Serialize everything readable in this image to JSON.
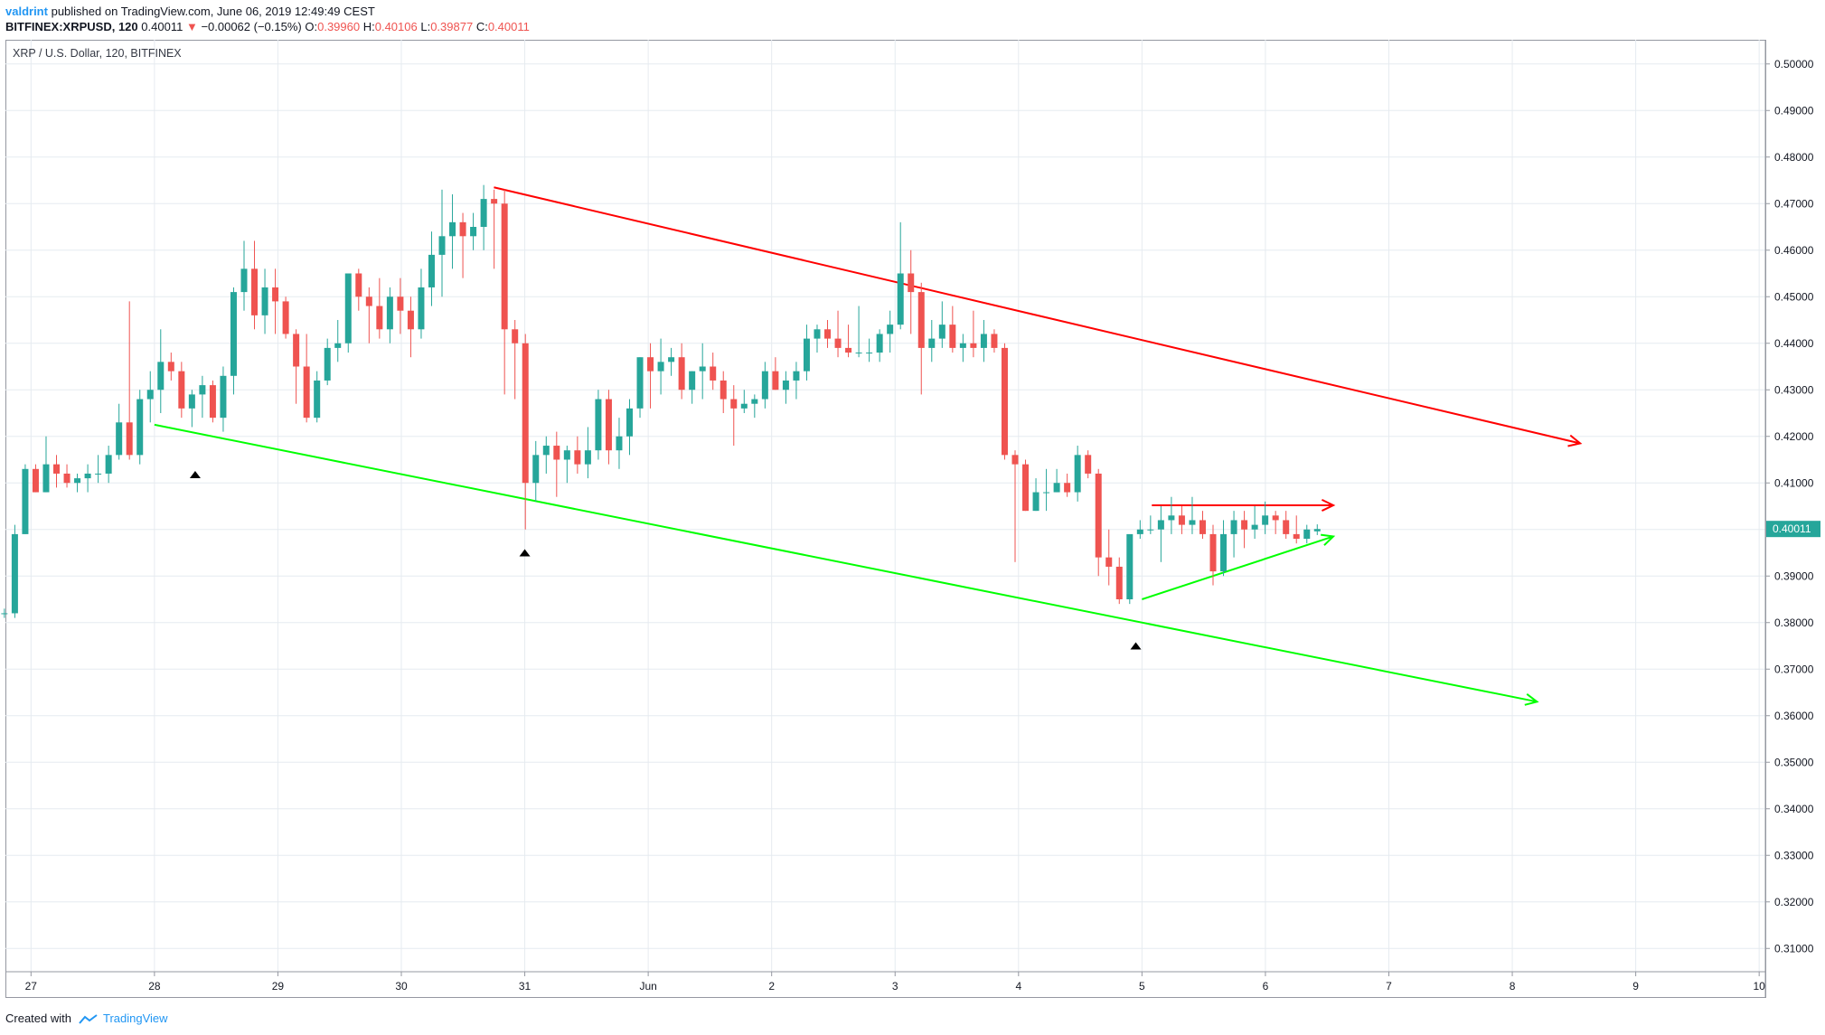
{
  "header": {
    "author": "valdrint",
    "published": "published on TradingView.com, June 06, 2019 12:49:49 CEST",
    "symbol": "BITFINEX:XRPUSD, 120",
    "last": "0.40011",
    "change_arrow": "▼",
    "change": "−0.00062 (−0.15%)",
    "o_label": "O:",
    "o_value": "0.39960",
    "h_label": "H:",
    "h_value": "0.40106",
    "l_label": "L:",
    "l_value": "0.39877",
    "c_label": "C:",
    "c_value": "0.40011"
  },
  "legend": "XRP / U.S. Dollar, 120, BITFINEX",
  "footer": {
    "created_with": "Created with",
    "brand": "TradingView"
  },
  "colors": {
    "up": "#26a69a",
    "down": "#ef5350",
    "resistance": "#ff0000",
    "support": "#00ff00",
    "grid": "#e6ebf0",
    "current_price_box": "#26a69a"
  },
  "chart_data": {
    "type": "candlestick",
    "title": "XRP / U.S. Dollar, 120, BITFINEX",
    "timeframe": "120",
    "ylim": [
      0.305,
      0.505
    ],
    "xlim": [
      -0.2,
      14.05
    ],
    "x_ticks": [
      {
        "x": 0,
        "label": "27"
      },
      {
        "x": 1,
        "label": "28"
      },
      {
        "x": 2,
        "label": "29"
      },
      {
        "x": 3,
        "label": "30"
      },
      {
        "x": 4,
        "label": "31"
      },
      {
        "x": 5,
        "label": "Jun"
      },
      {
        "x": 6,
        "label": "2"
      },
      {
        "x": 7,
        "label": "3"
      },
      {
        "x": 8,
        "label": "4"
      },
      {
        "x": 9,
        "label": "5"
      },
      {
        "x": 10,
        "label": "6"
      },
      {
        "x": 11,
        "label": "7"
      },
      {
        "x": 12,
        "label": "8"
      },
      {
        "x": 13,
        "label": "9"
      },
      {
        "x": 14,
        "label": "10"
      }
    ],
    "y_ticks": [
      "0.50000",
      "0.49000",
      "0.48000",
      "0.47000",
      "0.46000",
      "0.45000",
      "0.44000",
      "0.43000",
      "0.42000",
      "0.41000",
      "0.40000",
      "0.39000",
      "0.38000",
      "0.37000",
      "0.36000",
      "0.35000",
      "0.34000",
      "0.33000",
      "0.32000",
      "0.31000"
    ],
    "current_price": "0.40011",
    "candles_ohlc": [
      [
        0.382,
        0.383,
        0.381,
        0.382
      ],
      [
        0.382,
        0.383,
        0.381,
        0.382
      ],
      [
        0.382,
        0.401,
        0.381,
        0.399
      ],
      [
        0.399,
        0.414,
        0.399,
        0.413
      ],
      [
        0.413,
        0.414,
        0.408,
        0.408
      ],
      [
        0.408,
        0.42,
        0.408,
        0.414
      ],
      [
        0.414,
        0.416,
        0.409,
        0.412
      ],
      [
        0.412,
        0.414,
        0.409,
        0.41
      ],
      [
        0.41,
        0.412,
        0.408,
        0.411
      ],
      [
        0.411,
        0.414,
        0.408,
        0.412
      ],
      [
        0.412,
        0.416,
        0.41,
        0.412
      ],
      [
        0.412,
        0.418,
        0.41,
        0.416
      ],
      [
        0.416,
        0.427,
        0.415,
        0.423
      ],
      [
        0.423,
        0.449,
        0.415,
        0.416
      ],
      [
        0.416,
        0.43,
        0.414,
        0.428
      ],
      [
        0.428,
        0.434,
        0.423,
        0.43
      ],
      [
        0.43,
        0.443,
        0.425,
        0.436
      ],
      [
        0.436,
        0.438,
        0.432,
        0.434
      ],
      [
        0.434,
        0.436,
        0.424,
        0.426
      ],
      [
        0.426,
        0.43,
        0.422,
        0.429
      ],
      [
        0.429,
        0.433,
        0.424,
        0.431
      ],
      [
        0.431,
        0.432,
        0.423,
        0.424
      ],
      [
        0.424,
        0.435,
        0.421,
        0.433
      ],
      [
        0.433,
        0.452,
        0.429,
        0.451
      ],
      [
        0.451,
        0.462,
        0.447,
        0.456
      ],
      [
        0.456,
        0.462,
        0.443,
        0.446
      ],
      [
        0.446,
        0.456,
        0.442,
        0.452
      ],
      [
        0.452,
        0.456,
        0.442,
        0.449
      ],
      [
        0.449,
        0.45,
        0.441,
        0.442
      ],
      [
        0.442,
        0.443,
        0.427,
        0.435
      ],
      [
        0.435,
        0.442,
        0.423,
        0.424
      ],
      [
        0.424,
        0.434,
        0.423,
        0.432
      ],
      [
        0.432,
        0.441,
        0.431,
        0.439
      ],
      [
        0.439,
        0.445,
        0.436,
        0.44
      ],
      [
        0.44,
        0.454,
        0.438,
        0.455
      ],
      [
        0.455,
        0.456,
        0.447,
        0.45
      ],
      [
        0.45,
        0.452,
        0.44,
        0.448
      ],
      [
        0.448,
        0.454,
        0.441,
        0.443
      ],
      [
        0.443,
        0.452,
        0.44,
        0.45
      ],
      [
        0.45,
        0.454,
        0.442,
        0.447
      ],
      [
        0.447,
        0.45,
        0.437,
        0.443
      ],
      [
        0.443,
        0.456,
        0.441,
        0.452
      ],
      [
        0.452,
        0.464,
        0.448,
        0.459
      ],
      [
        0.459,
        0.473,
        0.45,
        0.463
      ],
      [
        0.463,
        0.472,
        0.456,
        0.466
      ],
      [
        0.466,
        0.468,
        0.454,
        0.463
      ],
      [
        0.463,
        0.468,
        0.46,
        0.465
      ],
      [
        0.465,
        0.474,
        0.46,
        0.471
      ],
      [
        0.471,
        0.473,
        0.456,
        0.47
      ],
      [
        0.47,
        0.473,
        0.429,
        0.443
      ],
      [
        0.443,
        0.445,
        0.428,
        0.44
      ],
      [
        0.44,
        0.442,
        0.4,
        0.41
      ],
      [
        0.41,
        0.419,
        0.406,
        0.416
      ],
      [
        0.416,
        0.42,
        0.412,
        0.418
      ],
      [
        0.418,
        0.421,
        0.407,
        0.415
      ],
      [
        0.415,
        0.418,
        0.41,
        0.417
      ],
      [
        0.417,
        0.42,
        0.412,
        0.414
      ],
      [
        0.414,
        0.422,
        0.411,
        0.417
      ],
      [
        0.417,
        0.43,
        0.415,
        0.428
      ],
      [
        0.428,
        0.43,
        0.414,
        0.417
      ],
      [
        0.417,
        0.424,
        0.413,
        0.42
      ],
      [
        0.42,
        0.428,
        0.416,
        0.426
      ],
      [
        0.426,
        0.437,
        0.424,
        0.437
      ],
      [
        0.437,
        0.44,
        0.426,
        0.434
      ],
      [
        0.434,
        0.441,
        0.429,
        0.436
      ],
      [
        0.436,
        0.439,
        0.433,
        0.437
      ],
      [
        0.437,
        0.44,
        0.428,
        0.43
      ],
      [
        0.43,
        0.434,
        0.427,
        0.434
      ],
      [
        0.434,
        0.44,
        0.428,
        0.435
      ],
      [
        0.435,
        0.438,
        0.43,
        0.432
      ],
      [
        0.432,
        0.434,
        0.425,
        0.428
      ],
      [
        0.428,
        0.431,
        0.418,
        0.426
      ],
      [
        0.426,
        0.43,
        0.425,
        0.427
      ],
      [
        0.427,
        0.429,
        0.424,
        0.428
      ],
      [
        0.428,
        0.436,
        0.426,
        0.434
      ],
      [
        0.434,
        0.437,
        0.43,
        0.43
      ],
      [
        0.43,
        0.434,
        0.427,
        0.432
      ],
      [
        0.432,
        0.436,
        0.428,
        0.434
      ],
      [
        0.434,
        0.444,
        0.432,
        0.441
      ],
      [
        0.441,
        0.444,
        0.438,
        0.443
      ],
      [
        0.443,
        0.445,
        0.439,
        0.441
      ],
      [
        0.441,
        0.447,
        0.437,
        0.439
      ],
      [
        0.439,
        0.444,
        0.437,
        0.438
      ],
      [
        0.438,
        0.448,
        0.437,
        0.438
      ],
      [
        0.438,
        0.441,
        0.436,
        0.438
      ],
      [
        0.438,
        0.443,
        0.436,
        0.442
      ],
      [
        0.442,
        0.447,
        0.438,
        0.444
      ],
      [
        0.444,
        0.466,
        0.443,
        0.455
      ],
      [
        0.455,
        0.46,
        0.442,
        0.451
      ],
      [
        0.451,
        0.453,
        0.429,
        0.439
      ],
      [
        0.439,
        0.445,
        0.436,
        0.441
      ],
      [
        0.441,
        0.449,
        0.439,
        0.444
      ],
      [
        0.444,
        0.448,
        0.438,
        0.439
      ],
      [
        0.439,
        0.442,
        0.436,
        0.44
      ],
      [
        0.44,
        0.447,
        0.437,
        0.439
      ],
      [
        0.439,
        0.445,
        0.436,
        0.442
      ],
      [
        0.442,
        0.443,
        0.438,
        0.439
      ],
      [
        0.439,
        0.44,
        0.415,
        0.416
      ],
      [
        0.416,
        0.417,
        0.393,
        0.414
      ],
      [
        0.414,
        0.415,
        0.404,
        0.404
      ],
      [
        0.404,
        0.411,
        0.404,
        0.408
      ],
      [
        0.408,
        0.413,
        0.404,
        0.408
      ],
      [
        0.408,
        0.413,
        0.408,
        0.41
      ],
      [
        0.41,
        0.412,
        0.407,
        0.408
      ],
      [
        0.408,
        0.418,
        0.406,
        0.416
      ],
      [
        0.416,
        0.417,
        0.411,
        0.412
      ],
      [
        0.412,
        0.413,
        0.39,
        0.394
      ],
      [
        0.394,
        0.4,
        0.388,
        0.392
      ],
      [
        0.392,
        0.394,
        0.384,
        0.385
      ],
      [
        0.385,
        0.398,
        0.384,
        0.399
      ],
      [
        0.399,
        0.402,
        0.398,
        0.4
      ],
      [
        0.4,
        0.403,
        0.399,
        0.4
      ],
      [
        0.4,
        0.405,
        0.393,
        0.402
      ],
      [
        0.402,
        0.407,
        0.399,
        0.403
      ],
      [
        0.403,
        0.405,
        0.399,
        0.401
      ],
      [
        0.401,
        0.407,
        0.399,
        0.402
      ],
      [
        0.402,
        0.404,
        0.398,
        0.399
      ],
      [
        0.399,
        0.401,
        0.388,
        0.391
      ],
      [
        0.391,
        0.402,
        0.39,
        0.399
      ],
      [
        0.399,
        0.404,
        0.394,
        0.402
      ],
      [
        0.402,
        0.404,
        0.396,
        0.4
      ],
      [
        0.4,
        0.405,
        0.398,
        0.401
      ],
      [
        0.401,
        0.406,
        0.399,
        0.403
      ],
      [
        0.403,
        0.404,
        0.399,
        0.402
      ],
      [
        0.402,
        0.404,
        0.398,
        0.399
      ],
      [
        0.399,
        0.403,
        0.397,
        0.398
      ],
      [
        0.398,
        0.401,
        0.397,
        0.4
      ],
      [
        0.3996,
        0.4011,
        0.3988,
        0.4001
      ]
    ],
    "annotations": {
      "descending_resistance": {
        "from": [
          3.75,
          0.4735
        ],
        "to": [
          12.55,
          0.4185
        ],
        "color": "#ff0000"
      },
      "descending_support": {
        "from": [
          1,
          0.4225
        ],
        "to": [
          12.2,
          0.363
        ],
        "color": "#00ff00"
      },
      "flat_resistance": {
        "from": [
          9.08,
          0.4052
        ],
        "to": [
          10.55,
          0.4052
        ],
        "color": "#ff0000"
      },
      "rising_support": {
        "from": [
          9.0,
          0.385
        ],
        "to": [
          10.55,
          0.3985
        ],
        "color": "#00ff00"
      },
      "markers": [
        [
          1.33,
          0.4118
        ],
        [
          4.0,
          0.395
        ],
        [
          8.95,
          0.375
        ]
      ]
    }
  }
}
